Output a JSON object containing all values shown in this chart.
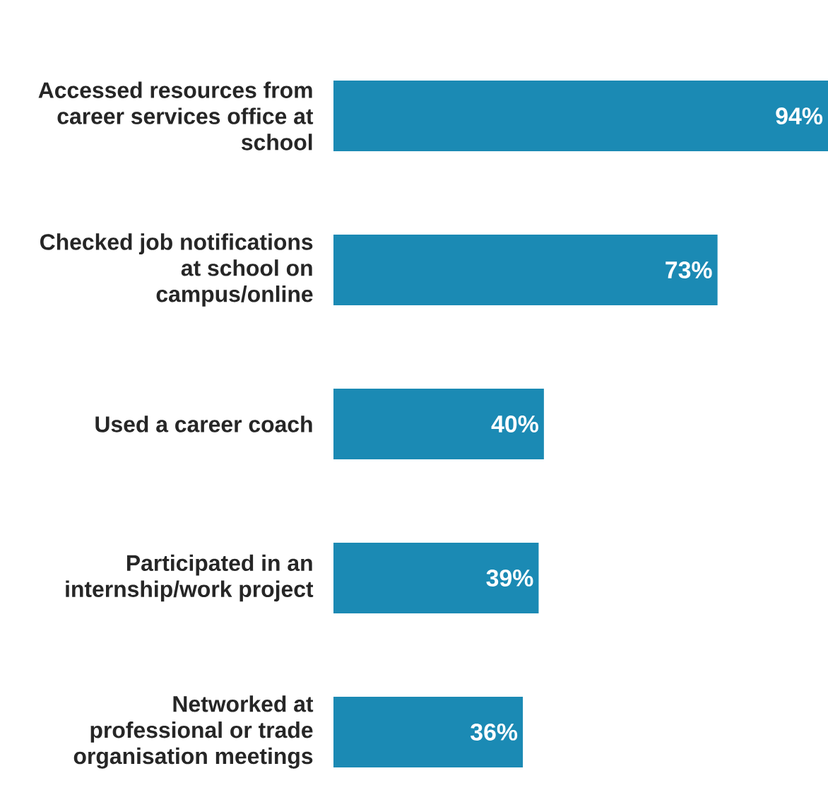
{
  "chart_data": {
    "type": "bar",
    "orientation": "horizontal",
    "categories": [
      "Accessed resources from career services office at school",
      "Checked job notifications at school on campus/online",
      "Used a career coach",
      "Participated in an internship/work project",
      "Networked at professional or trade organisation meetings"
    ],
    "values": [
      94,
      73,
      40,
      39,
      36
    ],
    "value_labels": [
      "94%",
      "73%",
      "40%",
      "39%",
      "36%"
    ],
    "color": "#1b8ab4"
  }
}
